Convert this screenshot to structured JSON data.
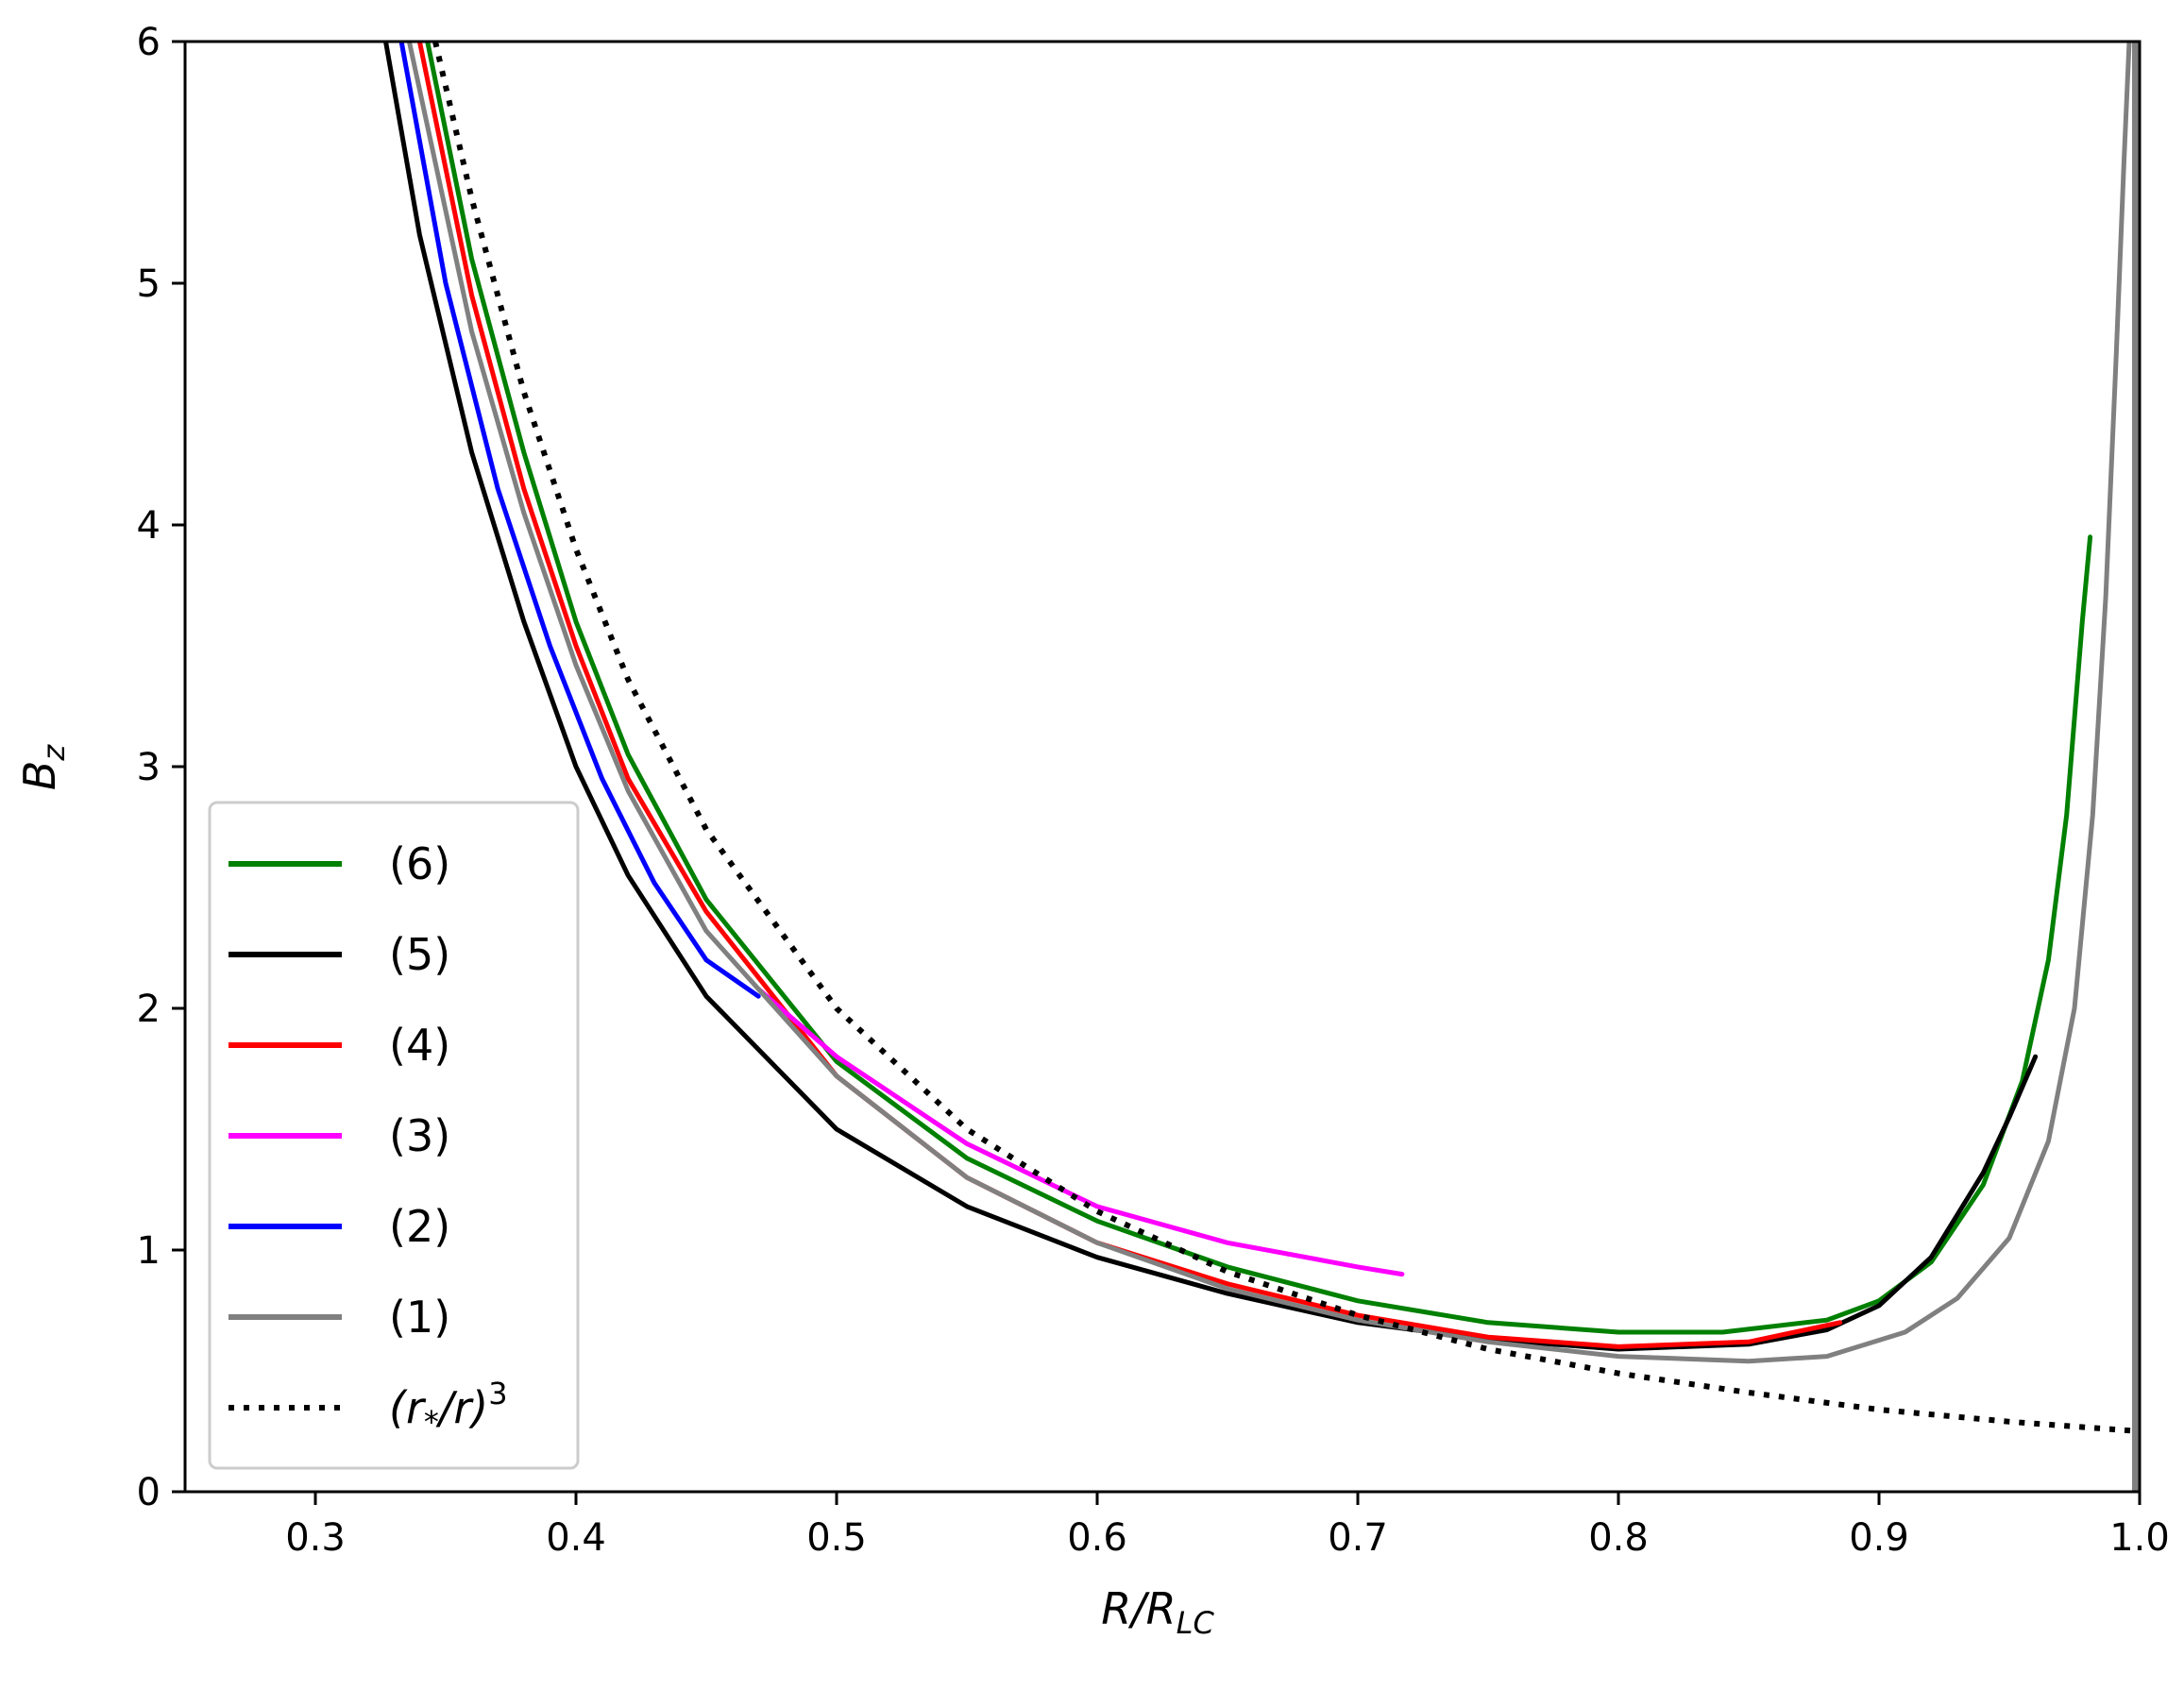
{
  "chart_data": {
    "type": "line",
    "title": "",
    "xlabel": {
      "base": "R/R",
      "sub": "LC"
    },
    "ylabel": {
      "base": "B",
      "sub": "z"
    },
    "xlim": [
      0.25,
      1.0
    ],
    "ylim": [
      0,
      6
    ],
    "xticks": [
      0.3,
      0.4,
      0.5,
      0.6,
      0.7,
      0.8,
      0.9,
      1.0
    ],
    "xtick_labels": [
      "0.3",
      "0.4",
      "0.5",
      "0.6",
      "0.7",
      "0.8",
      "0.9",
      "1.0"
    ],
    "yticks": [
      0,
      1,
      2,
      3,
      4,
      5,
      6
    ],
    "ytick_labels": [
      "0",
      "1",
      "2",
      "3",
      "4",
      "5",
      "6"
    ],
    "grid": false,
    "legend_position": "lower-left",
    "vertical_line": {
      "x": 1.0,
      "color": "#808080"
    },
    "series": [
      {
        "name": "(6)",
        "color": "#008000",
        "dash": "solid",
        "x": [
          0.343,
          0.36,
          0.38,
          0.4,
          0.42,
          0.45,
          0.5,
          0.55,
          0.6,
          0.65,
          0.7,
          0.75,
          0.8,
          0.84,
          0.88,
          0.9,
          0.92,
          0.94,
          0.955,
          0.965,
          0.972,
          0.978,
          0.981
        ],
        "y": [
          6.0,
          5.1,
          4.3,
          3.6,
          3.05,
          2.45,
          1.78,
          1.38,
          1.12,
          0.93,
          0.79,
          0.7,
          0.66,
          0.66,
          0.71,
          0.79,
          0.95,
          1.27,
          1.7,
          2.2,
          2.8,
          3.6,
          3.95
        ]
      },
      {
        "name": "(5)",
        "color": "#000000",
        "dash": "solid",
        "x": [
          0.327,
          0.34,
          0.36,
          0.38,
          0.4,
          0.42,
          0.45,
          0.5,
          0.55,
          0.6,
          0.65,
          0.7,
          0.75,
          0.8,
          0.85,
          0.88,
          0.9,
          0.92,
          0.94,
          0.95,
          0.96
        ],
        "y": [
          6.0,
          5.2,
          4.3,
          3.6,
          3.0,
          2.55,
          2.05,
          1.5,
          1.18,
          0.97,
          0.82,
          0.7,
          0.63,
          0.59,
          0.61,
          0.67,
          0.77,
          0.97,
          1.32,
          1.55,
          1.8
        ]
      },
      {
        "name": "(4)",
        "color": "#ff0000",
        "dash": "solid",
        "x": [
          0.34,
          0.36,
          0.38,
          0.4,
          0.42,
          0.45,
          0.5,
          0.55,
          0.6,
          0.65,
          0.7,
          0.75,
          0.8,
          0.85,
          0.885
        ],
        "y": [
          6.0,
          4.95,
          4.15,
          3.5,
          2.95,
          2.4,
          1.72,
          1.3,
          1.03,
          0.86,
          0.73,
          0.64,
          0.6,
          0.62,
          0.7
        ]
      },
      {
        "name": "(3)",
        "color": "#ff00ff",
        "dash": "solid",
        "x": [
          0.47,
          0.5,
          0.55,
          0.6,
          0.65,
          0.7,
          0.717
        ],
        "y": [
          2.08,
          1.8,
          1.44,
          1.18,
          1.03,
          0.93,
          0.9
        ]
      },
      {
        "name": "(2)",
        "color": "#0000ff",
        "dash": "solid",
        "x": [
          0.333,
          0.35,
          0.37,
          0.39,
          0.41,
          0.43,
          0.45,
          0.47
        ],
        "y": [
          6.0,
          5.0,
          4.15,
          3.5,
          2.95,
          2.52,
          2.2,
          2.05
        ]
      },
      {
        "name": "(1)",
        "color": "#808080",
        "dash": "solid",
        "x": [
          0.336,
          0.36,
          0.38,
          0.4,
          0.42,
          0.45,
          0.5,
          0.55,
          0.6,
          0.65,
          0.7,
          0.75,
          0.8,
          0.85,
          0.88,
          0.91,
          0.93,
          0.95,
          0.965,
          0.975,
          0.982,
          0.987,
          0.991,
          0.994,
          0.996
        ],
        "y": [
          6.0,
          4.8,
          4.05,
          3.42,
          2.9,
          2.32,
          1.72,
          1.3,
          1.03,
          0.84,
          0.71,
          0.62,
          0.56,
          0.54,
          0.56,
          0.66,
          0.8,
          1.05,
          1.45,
          2.0,
          2.8,
          3.7,
          4.7,
          5.5,
          6.0
        ]
      },
      {
        "name": "(r*/r)^3",
        "color": "#000000",
        "dash": "dotted",
        "x": [
          0.346,
          0.36,
          0.38,
          0.4,
          0.42,
          0.45,
          0.5,
          0.55,
          0.6,
          0.65,
          0.7,
          0.75,
          0.8,
          0.85,
          0.9,
          0.95,
          1.0
        ],
        "y": [
          6.0,
          5.35,
          4.55,
          3.9,
          3.36,
          2.74,
          2.0,
          1.5,
          1.16,
          0.91,
          0.73,
          0.59,
          0.49,
          0.41,
          0.34,
          0.29,
          0.25
        ]
      }
    ]
  },
  "legend": [
    {
      "series": 0,
      "text": "(6)",
      "color": "#008000",
      "dash": "solid"
    },
    {
      "series": 1,
      "text": "(5)",
      "color": "#000000",
      "dash": "solid"
    },
    {
      "series": 2,
      "text": "(4)",
      "color": "#ff0000",
      "dash": "solid"
    },
    {
      "series": 3,
      "text": "(3)",
      "color": "#ff00ff",
      "dash": "solid"
    },
    {
      "series": 4,
      "text": "(2)",
      "color": "#0000ff",
      "dash": "solid"
    },
    {
      "series": 5,
      "text": "(1)",
      "color": "#808080",
      "dash": "solid"
    },
    {
      "series": 6,
      "text": "(r*/r)^3",
      "color": "#000000",
      "dash": "dotted",
      "label_parts": {
        "open": "(r",
        "sub": "*",
        "mid": "/r)",
        "sup": "3"
      }
    }
  ]
}
